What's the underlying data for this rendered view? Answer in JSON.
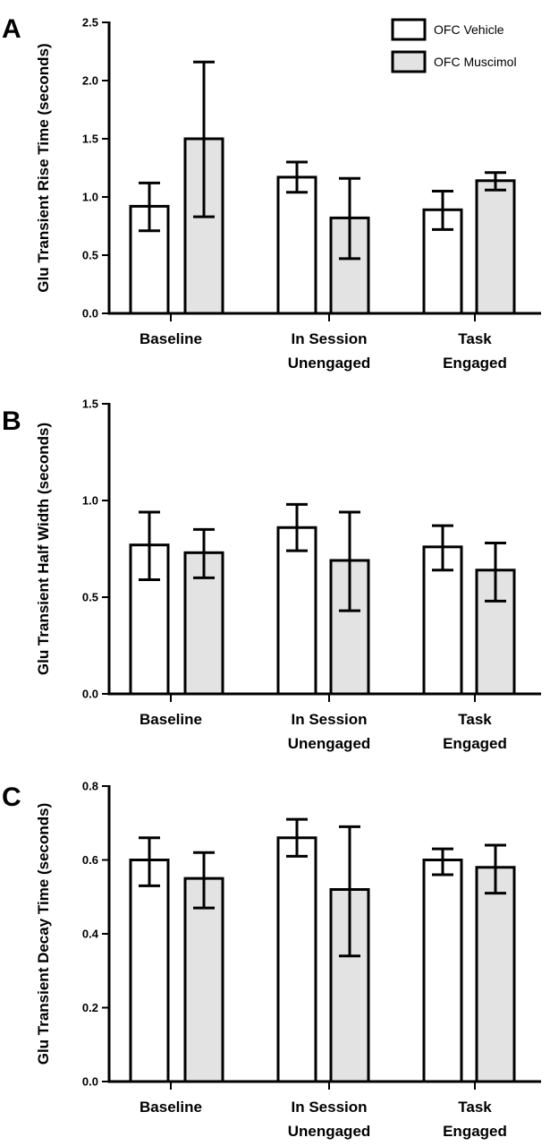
{
  "colors": {
    "vehicle_fill": "#ffffff",
    "muscimol_fill": "#e3e3e3",
    "stroke": "#000000"
  },
  "chart_data": [
    {
      "panel": "A",
      "type": "bar",
      "ylabel": "Glu Transient Rise Time (seconds)",
      "ylim": [
        0,
        2.5
      ],
      "yticks": [
        "0.0",
        "0.5",
        "1.0",
        "1.5",
        "2.0",
        "2.5"
      ],
      "categories": [
        "Baseline",
        "In Session\nUnengaged",
        "Task\nEngaged"
      ],
      "legend": {
        "placement": "top-right",
        "entries": [
          "OFC Vehicle",
          "OFC Muscimol"
        ]
      },
      "series": [
        {
          "name": "OFC Vehicle",
          "values": [
            0.92,
            1.17,
            0.89
          ],
          "err_low": [
            0.71,
            1.04,
            0.72
          ],
          "err_high": [
            1.12,
            1.3,
            1.05
          ]
        },
        {
          "name": "OFC Muscimol",
          "values": [
            1.5,
            0.82,
            1.14
          ],
          "err_low": [
            0.83,
            0.47,
            1.06
          ],
          "err_high": [
            2.16,
            1.16,
            1.21
          ]
        }
      ]
    },
    {
      "panel": "B",
      "type": "bar",
      "ylabel": "Glu Transient Half Width (seconds)",
      "ylim": [
        0,
        1.5
      ],
      "yticks": [
        "0.0",
        "0.5",
        "1.0",
        "1.5"
      ],
      "categories": [
        "Baseline",
        "In Session\nUnengaged",
        "Task\nEngaged"
      ],
      "series": [
        {
          "name": "OFC Vehicle",
          "values": [
            0.77,
            0.86,
            0.76
          ],
          "err_low": [
            0.59,
            0.74,
            0.64
          ],
          "err_high": [
            0.94,
            0.98,
            0.87
          ]
        },
        {
          "name": "OFC Muscimol",
          "values": [
            0.73,
            0.69,
            0.64
          ],
          "err_low": [
            0.6,
            0.43,
            0.48
          ],
          "err_high": [
            0.85,
            0.94,
            0.78
          ]
        }
      ]
    },
    {
      "panel": "C",
      "type": "bar",
      "ylabel": "Glu Transient Decay Time (seconds)",
      "ylim": [
        0,
        0.8
      ],
      "yticks": [
        "0.0",
        "0.2",
        "0.4",
        "0.6",
        "0.8"
      ],
      "categories": [
        "Baseline",
        "In Session\nUnengaged",
        "Task\nEngaged"
      ],
      "series": [
        {
          "name": "OFC Vehicle",
          "values": [
            0.6,
            0.66,
            0.6
          ],
          "err_low": [
            0.53,
            0.61,
            0.56
          ],
          "err_high": [
            0.66,
            0.71,
            0.63
          ]
        },
        {
          "name": "OFC Muscimol",
          "values": [
            0.55,
            0.52,
            0.58
          ],
          "err_low": [
            0.47,
            0.34,
            0.51
          ],
          "err_high": [
            0.62,
            0.69,
            0.64
          ]
        }
      ]
    }
  ]
}
